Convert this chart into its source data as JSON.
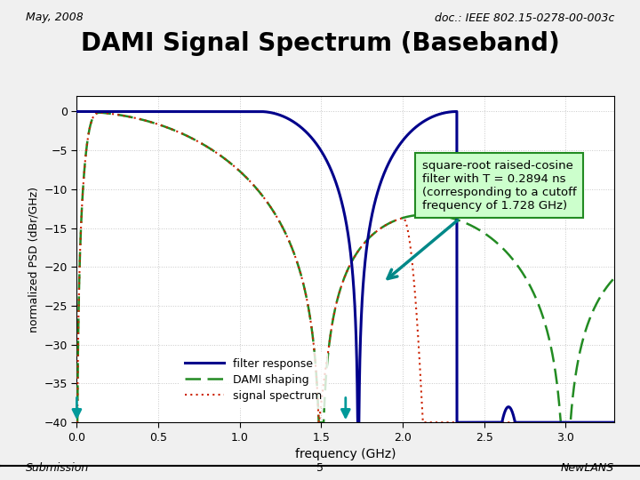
{
  "title": "DAMI Signal Spectrum (Baseband)",
  "header_left": "May, 2008",
  "header_right": "doc.: IEEE 802.15-0278-00-003c",
  "footer_left": "Submission",
  "footer_center": "5",
  "footer_right": "NewLANS",
  "xlabel": "frequency (GHz)",
  "ylabel": "normalized PSD (dBr/GHz)",
  "xlim": [
    0,
    3.3
  ],
  "ylim": [
    -40,
    2
  ],
  "xticks": [
    0,
    0.5,
    1,
    1.5,
    2,
    2.5,
    3
  ],
  "yticks": [
    0,
    -5,
    -10,
    -15,
    -20,
    -25,
    -30,
    -35,
    -40
  ],
  "filter_color": "#00008B",
  "dami_color": "#228B22",
  "signal_color": "#CC2200",
  "annotation_text": "square-root raised-cosine\nfilter with T = 0.2894 ns\n(corresponding to a cutoff\nfrequency of 1.728 GHz)",
  "annotation_box_facecolor": "#CCFFCC",
  "annotation_box_edgecolor": "#228B22",
  "arrow_color": "#008888",
  "f_cutoff": 1.728,
  "rolloff": 0.35,
  "bg_color": "#F0F0F0",
  "plot_bg": "#FFFFFF",
  "grid_color": "#C8C8C8"
}
